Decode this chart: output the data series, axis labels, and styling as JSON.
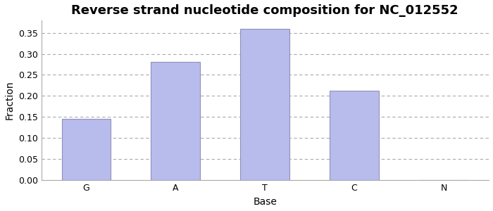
{
  "title": "Reverse strand nucleotide composition for NC_012552",
  "categories": [
    "G",
    "A",
    "T",
    "C",
    "N"
  ],
  "values": [
    0.146,
    0.281,
    0.36,
    0.213,
    0.0
  ],
  "bar_color": "#b8bcec",
  "bar_edge_color": "#9090bb",
  "xlabel": "Base",
  "ylabel": "Fraction",
  "ylim": [
    0.0,
    0.38
  ],
  "yticks": [
    0.0,
    0.05,
    0.1,
    0.15,
    0.2,
    0.25,
    0.3,
    0.35
  ],
  "title_fontsize": 13,
  "axis_label_fontsize": 10,
  "tick_fontsize": 9,
  "grid_color": "#aaaaaa",
  "background_color": "#ffffff",
  "figure_bg": "#ffffff"
}
